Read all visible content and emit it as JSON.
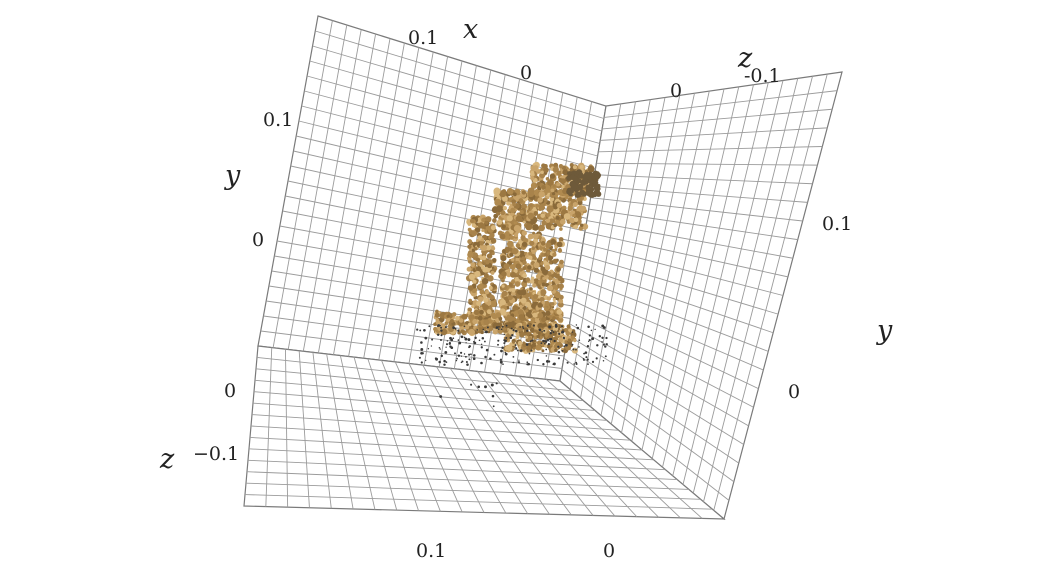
{
  "chart_data": {
    "type": "scatter",
    "subtype": "3d-point-cloud",
    "title": "",
    "axes": {
      "x": {
        "label": "x",
        "ticks": [
          "0.1",
          "0"
        ]
      },
      "y": {
        "label": "y",
        "ticks": [
          "0.1",
          "0"
        ]
      },
      "z": {
        "label": "z",
        "ticks": [
          "0",
          "-0.1"
        ]
      }
    },
    "labels": {
      "back_x_label": "x",
      "back_x_tick_a": "0.1",
      "back_x_tick_b": "0",
      "left_y_label": "y",
      "left_y_tick_a": "0.1",
      "left_y_tick_b": "0",
      "right_z_label": "z",
      "right_z_tick_a": "-0.1",
      "right_z_tick_b": "0",
      "right_y_label": "y",
      "right_y_tick_a": "0.1",
      "right_y_tick_b": "0",
      "left_z_label": "z",
      "left_z_tick_a": "0",
      "left_z_tick_b": "−0.1",
      "bottom_x_tick_a": "0.1",
      "bottom_x_tick_b": "0"
    },
    "grid": true,
    "point_color": "#b08a4f",
    "noise_color": "#3a3a3a"
  }
}
